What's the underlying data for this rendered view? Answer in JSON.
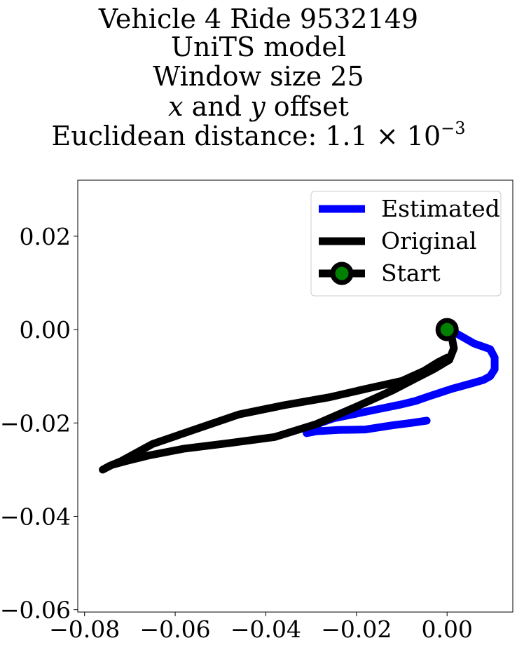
{
  "title": {
    "line1": "Vehicle 4 Ride 9532149",
    "line2": "UniTS model",
    "line3": "Window size 25",
    "line4_x": "x",
    "line4_and": "and",
    "line4_y": "y",
    "line4_rest": "offset",
    "line5_prefix": "Euclidean distance: 1.1 × 10",
    "line5_exp": "−3"
  },
  "chart_data": {
    "type": "line",
    "xlim": [
      -0.0815,
      0.0145
    ],
    "ylim": [
      -0.0605,
      0.032
    ],
    "xticks": [
      -0.08,
      -0.06,
      -0.04,
      -0.02,
      0.0
    ],
    "yticks": [
      0.02,
      0.0,
      -0.02,
      -0.04,
      -0.06
    ],
    "grid": false,
    "legend_placement": "upper-right",
    "series": [
      {
        "name": "Estimated",
        "color": "#0000ff",
        "x": [
          0.0,
          0.002,
          0.006,
          0.0095,
          0.0105,
          0.0105,
          0.0095,
          0.008,
          0.0055,
          0.001,
          -0.004,
          -0.007,
          -0.01,
          -0.014,
          -0.02,
          -0.025,
          -0.028,
          -0.03,
          -0.031,
          -0.029,
          -0.024,
          -0.018,
          -0.012,
          -0.008,
          -0.0045
        ],
        "y": [
          0.0,
          -0.0008,
          -0.003,
          -0.0042,
          -0.006,
          -0.0085,
          -0.01,
          -0.0108,
          -0.0115,
          -0.0127,
          -0.0143,
          -0.0153,
          -0.016,
          -0.0168,
          -0.018,
          -0.019,
          -0.02,
          -0.0212,
          -0.0222,
          -0.0218,
          -0.0215,
          -0.0214,
          -0.0205,
          -0.02,
          -0.0195
        ]
      },
      {
        "name": "Original",
        "color": "#000000",
        "x": [
          0.0,
          0.001,
          0.0015,
          0.0005,
          -0.003,
          -0.007,
          -0.012,
          -0.02,
          -0.029,
          -0.038,
          -0.048,
          -0.058,
          -0.066,
          -0.071,
          -0.074,
          -0.076,
          -0.0745,
          -0.072,
          -0.065,
          -0.056,
          -0.046,
          -0.036,
          -0.026,
          -0.017,
          -0.01,
          -0.005,
          -0.002,
          0.0
        ],
        "y": [
          0.0,
          -0.0015,
          -0.004,
          -0.0065,
          -0.0085,
          -0.0105,
          -0.013,
          -0.0165,
          -0.0203,
          -0.023,
          -0.0243,
          -0.0255,
          -0.027,
          -0.0282,
          -0.029,
          -0.03,
          -0.0292,
          -0.0282,
          -0.0245,
          -0.0215,
          -0.0182,
          -0.0162,
          -0.0145,
          -0.0125,
          -0.011,
          -0.0088,
          -0.007,
          -0.006
        ]
      }
    ],
    "start_point": {
      "name": "Start",
      "x": 0.0,
      "y": 0.0,
      "marker_color": "#008000",
      "edge_color": "#000000"
    }
  }
}
